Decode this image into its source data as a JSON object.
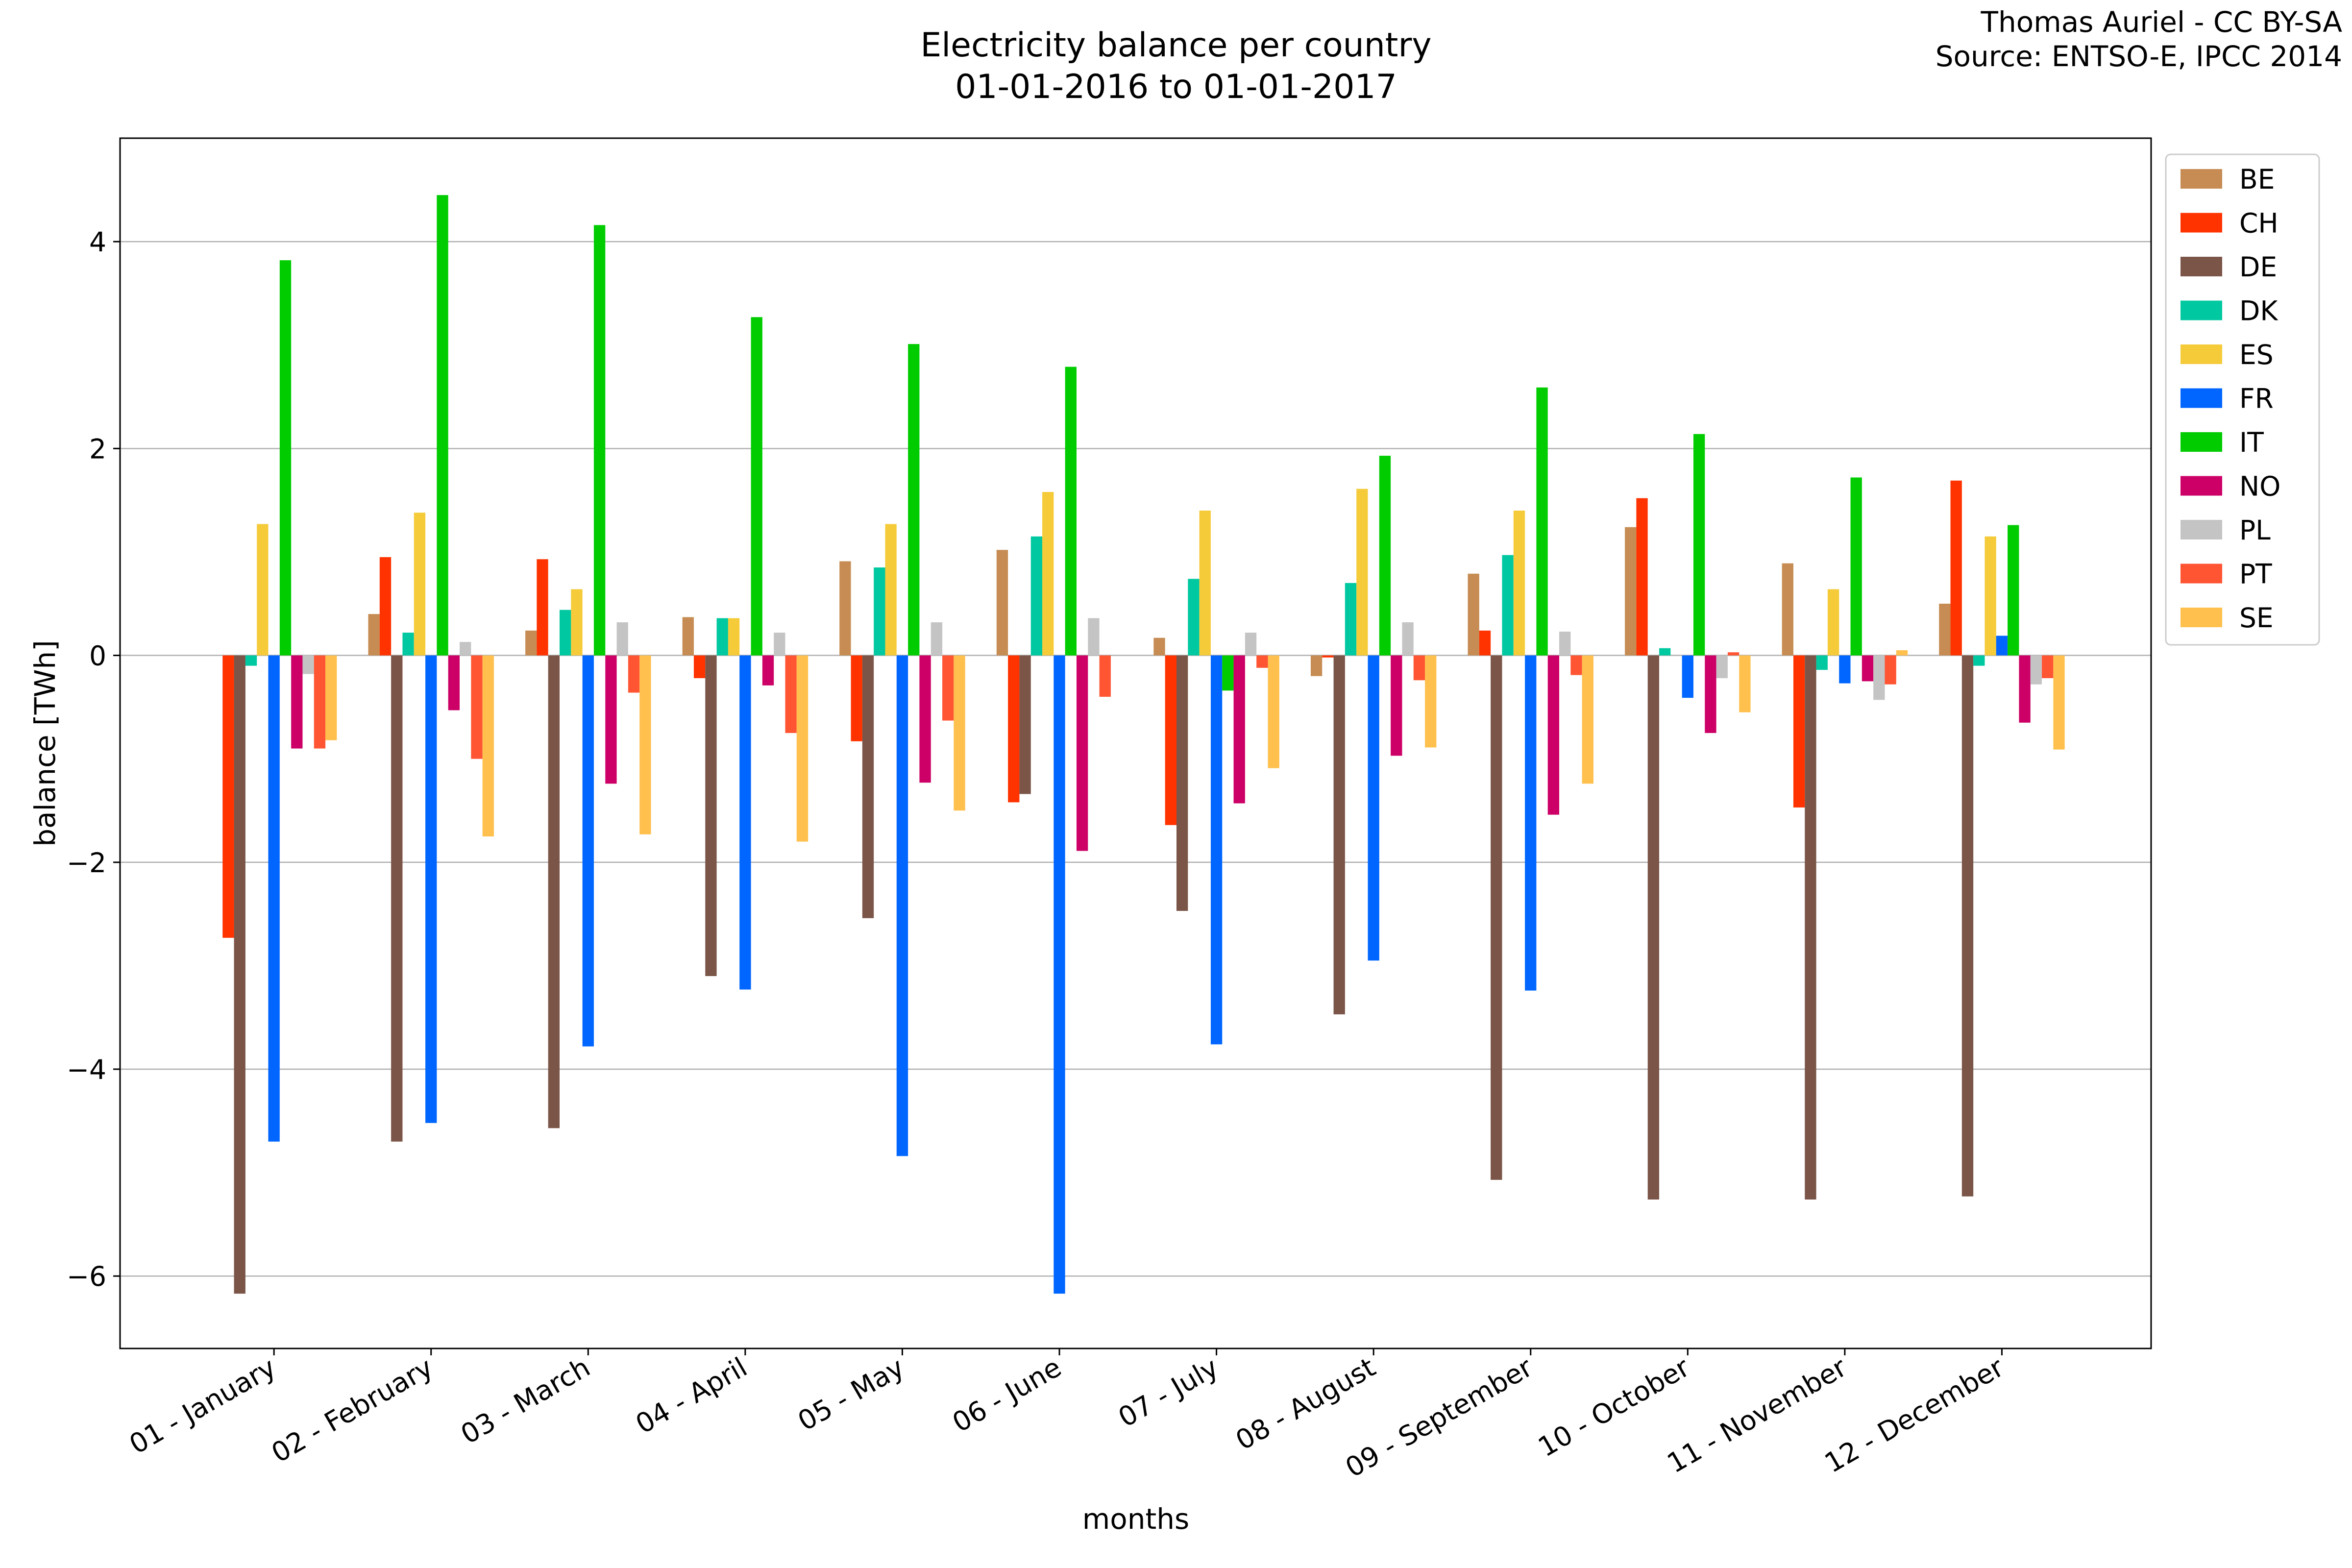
{
  "chart_data": {
    "type": "bar",
    "title": "Electricity balance per country",
    "subtitle": "01-01-2016 to 01-01-2017",
    "credit": [
      "Thomas Auriel - CC BY-SA",
      "Source: ENTSO-E, IPCC 2014"
    ],
    "xlabel": "months",
    "ylabel": "balance [TWh]",
    "ylim": [
      -6.7,
      5.0
    ],
    "yticks": [
      -6,
      -4,
      -2,
      0,
      2,
      4
    ],
    "ytick_labels": [
      "−6",
      "−4",
      "−2",
      "0",
      "2",
      "4"
    ],
    "grid": "horizontal",
    "legend_position": "top-right",
    "categories": [
      "01 - January",
      "02 - February",
      "03 - March",
      "04 - April",
      "05 - May",
      "06 - June",
      "07 - July",
      "08 - August",
      "09 - September",
      "10 - October",
      "11 - November",
      "12 - December"
    ],
    "series": [
      {
        "name": "BE",
        "color": "#c68c53",
        "values": [
          0,
          0.4,
          0.24,
          0.37,
          0.91,
          1.02,
          0.17,
          -0.2,
          0.79,
          1.24,
          0.89,
          0.5
        ]
      },
      {
        "name": "CH",
        "color": "#ff3300",
        "values": [
          -2.73,
          0.95,
          0.93,
          -0.22,
          -0.83,
          -1.42,
          -1.64,
          -0.02,
          0.24,
          1.52,
          -1.47,
          1.69
        ]
      },
      {
        "name": "DE",
        "color": "#7a5548",
        "values": [
          -6.17,
          -4.7,
          -4.57,
          -3.1,
          -2.54,
          -1.34,
          -2.47,
          -3.47,
          -5.07,
          -5.26,
          -5.26,
          -5.23
        ]
      },
      {
        "name": "DK",
        "color": "#00c8a0",
        "values": [
          -0.1,
          0.22,
          0.44,
          0.36,
          0.85,
          1.15,
          0.74,
          0.7,
          0.97,
          0.07,
          -0.14,
          -0.1
        ]
      },
      {
        "name": "ES",
        "color": "#f5cb3a",
        "values": [
          1.27,
          1.38,
          0.64,
          0.36,
          1.27,
          1.58,
          1.4,
          1.61,
          1.4,
          0,
          0.64,
          1.15
        ]
      },
      {
        "name": "FR",
        "color": "#0066ff",
        "values": [
          -4.7,
          -4.52,
          -3.78,
          -3.23,
          -4.84,
          -6.17,
          -3.76,
          -2.95,
          -3.24,
          -0.41,
          -0.27,
          0.19
        ]
      },
      {
        "name": "IT",
        "color": "#00cc00",
        "values": [
          3.82,
          4.45,
          4.16,
          3.27,
          3.01,
          2.79,
          -0.34,
          1.93,
          2.59,
          2.14,
          1.72,
          1.26
        ]
      },
      {
        "name": "NO",
        "color": "#cc0066",
        "values": [
          -0.9,
          -0.53,
          -1.24,
          -0.29,
          -1.23,
          -1.89,
          -1.43,
          -0.97,
          -1.54,
          -0.75,
          -0.25,
          -0.65
        ]
      },
      {
        "name": "PL",
        "color": "#c4c4c4",
        "values": [
          -0.18,
          0.13,
          0.32,
          0.22,
          0.32,
          0.36,
          0.22,
          0.32,
          0.23,
          -0.22,
          -0.43,
          -0.28
        ]
      },
      {
        "name": "PT",
        "color": "#ff5533",
        "values": [
          -0.9,
          -1.0,
          -0.36,
          -0.75,
          -0.63,
          -0.4,
          -0.12,
          -0.24,
          -0.19,
          0.03,
          -0.28,
          -0.22
        ]
      },
      {
        "name": "SE",
        "color": "#ffc04d",
        "values": [
          -0.82,
          -1.75,
          -1.73,
          -1.8,
          -1.5,
          0,
          -1.09,
          -0.89,
          -1.24,
          -0.55,
          0.05,
          -0.91
        ]
      }
    ]
  }
}
